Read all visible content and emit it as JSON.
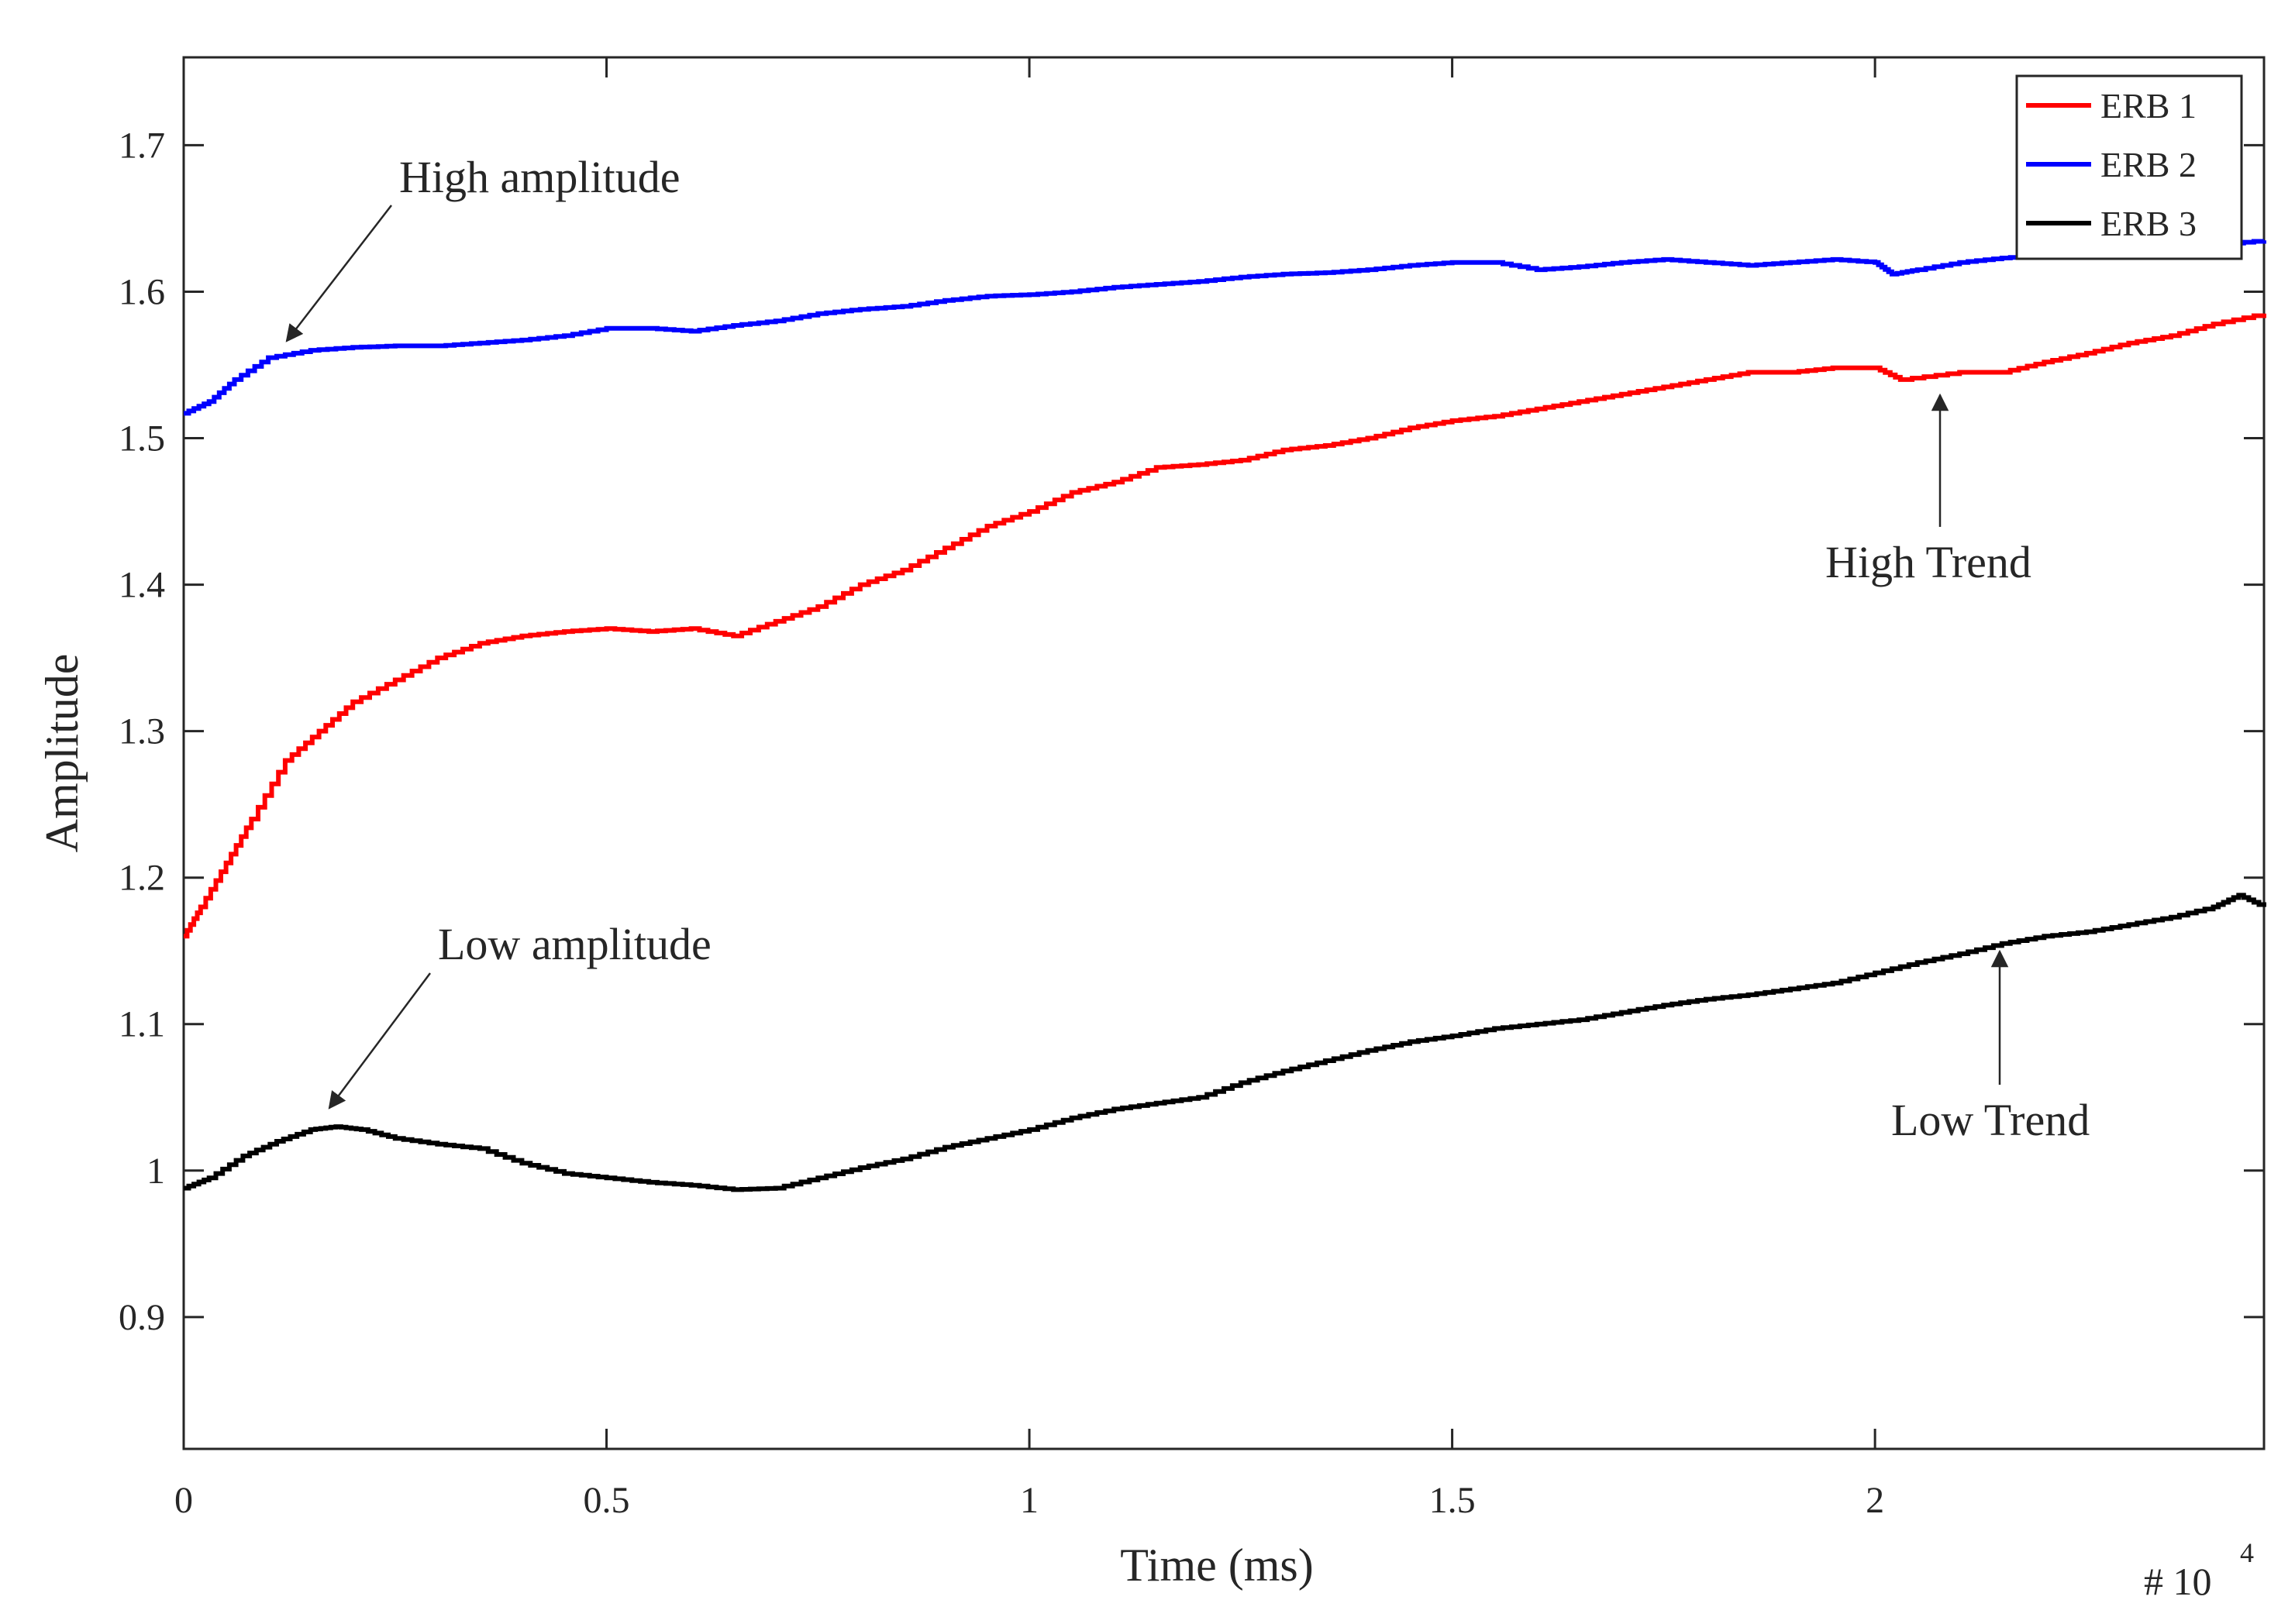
{
  "chart_data": {
    "type": "line",
    "title": "",
    "xlabel": "Time (ms)",
    "ylabel": "Amplitude",
    "x_exponent_prefix": "# 10",
    "x_exponent_power": "4",
    "xlim": [
      0,
      2.46
    ],
    "ylim": [
      0.81,
      1.76
    ],
    "xticks": [
      0,
      0.5,
      1,
      1.5,
      2
    ],
    "xtick_labels": [
      "0",
      "0.5",
      "1",
      "1.5",
      "2"
    ],
    "yticks": [
      0.9,
      1.0,
      1.1,
      1.2,
      1.3,
      1.4,
      1.5,
      1.6,
      1.7
    ],
    "ytick_labels": [
      "0.9",
      "1",
      "1.1",
      "1.2",
      "1.3",
      "1.4",
      "1.5",
      "1.6",
      "1.7"
    ],
    "grid": false,
    "legend_position": "top-right",
    "series": [
      {
        "name": "ERB 1",
        "color": "#ff0000",
        "points": [
          [
            0,
            1.16
          ],
          [
            0.02,
            1.18
          ],
          [
            0.05,
            1.21
          ],
          [
            0.08,
            1.24
          ],
          [
            0.12,
            1.28
          ],
          [
            0.16,
            1.3
          ],
          [
            0.2,
            1.32
          ],
          [
            0.25,
            1.335
          ],
          [
            0.3,
            1.35
          ],
          [
            0.35,
            1.36
          ],
          [
            0.4,
            1.365
          ],
          [
            0.45,
            1.368
          ],
          [
            0.5,
            1.37
          ],
          [
            0.55,
            1.368
          ],
          [
            0.6,
            1.37
          ],
          [
            0.65,
            1.365
          ],
          [
            0.7,
            1.375
          ],
          [
            0.75,
            1.385
          ],
          [
            0.8,
            1.4
          ],
          [
            0.85,
            1.41
          ],
          [
            0.9,
            1.425
          ],
          [
            0.95,
            1.44
          ],
          [
            1.0,
            1.45
          ],
          [
            1.05,
            1.463
          ],
          [
            1.1,
            1.47
          ],
          [
            1.15,
            1.48
          ],
          [
            1.2,
            1.482
          ],
          [
            1.25,
            1.485
          ],
          [
            1.3,
            1.492
          ],
          [
            1.35,
            1.495
          ],
          [
            1.4,
            1.5
          ],
          [
            1.45,
            1.507
          ],
          [
            1.5,
            1.512
          ],
          [
            1.55,
            1.515
          ],
          [
            1.6,
            1.52
          ],
          [
            1.65,
            1.525
          ],
          [
            1.7,
            1.53
          ],
          [
            1.75,
            1.535
          ],
          [
            1.8,
            1.54
          ],
          [
            1.85,
            1.545
          ],
          [
            1.9,
            1.545
          ],
          [
            1.95,
            1.548
          ],
          [
            2.0,
            1.548
          ],
          [
            2.03,
            1.54
          ],
          [
            2.1,
            1.545
          ],
          [
            2.15,
            1.545
          ],
          [
            2.2,
            1.552
          ],
          [
            2.25,
            1.558
          ],
          [
            2.3,
            1.565
          ],
          [
            2.35,
            1.57
          ],
          [
            2.4,
            1.578
          ],
          [
            2.46,
            1.585
          ]
        ]
      },
      {
        "name": "ERB 2",
        "color": "#0000ff",
        "points": [
          [
            0,
            1.517
          ],
          [
            0.03,
            1.525
          ],
          [
            0.06,
            1.54
          ],
          [
            0.1,
            1.555
          ],
          [
            0.15,
            1.56
          ],
          [
            0.2,
            1.562
          ],
          [
            0.25,
            1.563
          ],
          [
            0.3,
            1.563
          ],
          [
            0.35,
            1.565
          ],
          [
            0.4,
            1.567
          ],
          [
            0.45,
            1.57
          ],
          [
            0.5,
            1.575
          ],
          [
            0.55,
            1.575
          ],
          [
            0.6,
            1.573
          ],
          [
            0.65,
            1.577
          ],
          [
            0.7,
            1.58
          ],
          [
            0.75,
            1.585
          ],
          [
            0.8,
            1.588
          ],
          [
            0.85,
            1.59
          ],
          [
            0.9,
            1.594
          ],
          [
            0.95,
            1.597
          ],
          [
            1.0,
            1.598
          ],
          [
            1.05,
            1.6
          ],
          [
            1.1,
            1.603
          ],
          [
            1.15,
            1.605
          ],
          [
            1.2,
            1.607
          ],
          [
            1.25,
            1.61
          ],
          [
            1.3,
            1.612
          ],
          [
            1.35,
            1.613
          ],
          [
            1.4,
            1.615
          ],
          [
            1.45,
            1.618
          ],
          [
            1.5,
            1.62
          ],
          [
            1.55,
            1.62
          ],
          [
            1.6,
            1.615
          ],
          [
            1.65,
            1.617
          ],
          [
            1.7,
            1.62
          ],
          [
            1.75,
            1.622
          ],
          [
            1.8,
            1.62
          ],
          [
            1.85,
            1.618
          ],
          [
            1.9,
            1.62
          ],
          [
            1.95,
            1.622
          ],
          [
            2.0,
            1.62
          ],
          [
            2.02,
            1.612
          ],
          [
            2.05,
            1.615
          ],
          [
            2.1,
            1.62
          ],
          [
            2.15,
            1.623
          ],
          [
            2.2,
            1.625
          ],
          [
            2.25,
            1.625
          ],
          [
            2.3,
            1.627
          ],
          [
            2.35,
            1.63
          ],
          [
            2.4,
            1.632
          ],
          [
            2.46,
            1.635
          ]
        ]
      },
      {
        "name": "ERB 3",
        "color": "#000000",
        "points": [
          [
            0,
            0.988
          ],
          [
            0.03,
            0.995
          ],
          [
            0.07,
            1.01
          ],
          [
            0.11,
            1.02
          ],
          [
            0.15,
            1.028
          ],
          [
            0.18,
            1.03
          ],
          [
            0.21,
            1.028
          ],
          [
            0.25,
            1.022
          ],
          [
            0.3,
            1.018
          ],
          [
            0.35,
            1.015
          ],
          [
            0.4,
            1.005
          ],
          [
            0.45,
            0.998
          ],
          [
            0.5,
            0.995
          ],
          [
            0.55,
            0.992
          ],
          [
            0.6,
            0.99
          ],
          [
            0.65,
            0.987
          ],
          [
            0.7,
            0.988
          ],
          [
            0.75,
            0.995
          ],
          [
            0.8,
            1.002
          ],
          [
            0.85,
            1.008
          ],
          [
            0.9,
            1.016
          ],
          [
            0.95,
            1.022
          ],
          [
            1.0,
            1.028
          ],
          [
            1.05,
            1.036
          ],
          [
            1.1,
            1.042
          ],
          [
            1.15,
            1.046
          ],
          [
            1.2,
            1.05
          ],
          [
            1.25,
            1.06
          ],
          [
            1.3,
            1.068
          ],
          [
            1.35,
            1.075
          ],
          [
            1.4,
            1.082
          ],
          [
            1.45,
            1.088
          ],
          [
            1.5,
            1.092
          ],
          [
            1.55,
            1.097
          ],
          [
            1.6,
            1.1
          ],
          [
            1.65,
            1.103
          ],
          [
            1.7,
            1.108
          ],
          [
            1.75,
            1.113
          ],
          [
            1.8,
            1.117
          ],
          [
            1.85,
            1.12
          ],
          [
            1.9,
            1.124
          ],
          [
            1.95,
            1.128
          ],
          [
            2.0,
            1.135
          ],
          [
            2.05,
            1.142
          ],
          [
            2.1,
            1.148
          ],
          [
            2.15,
            1.155
          ],
          [
            2.2,
            1.16
          ],
          [
            2.25,
            1.163
          ],
          [
            2.3,
            1.168
          ],
          [
            2.35,
            1.173
          ],
          [
            2.4,
            1.18
          ],
          [
            2.43,
            1.188
          ],
          [
            2.46,
            1.18
          ]
        ]
      }
    ],
    "annotations": [
      {
        "text": "High amplitude",
        "text_x": 0.255,
        "text_y": 1.775,
        "target_x": 0.12,
        "target_y": 1.565
      },
      {
        "text": "Low amplitude",
        "text_x": 0.3,
        "text_y": 1.755,
        "target_x": 0.17,
        "target_y": 1.045
      },
      {
        "text": "High Trend",
        "text_x": 2.08,
        "text_y": 1.513,
        "target_x": 2.08,
        "target_y": 1.548
      },
      {
        "text": "Low Trend",
        "text_x": 2.145,
        "text_y": 1.135,
        "target_x": 2.145,
        "target_y": 1.16
      }
    ]
  }
}
